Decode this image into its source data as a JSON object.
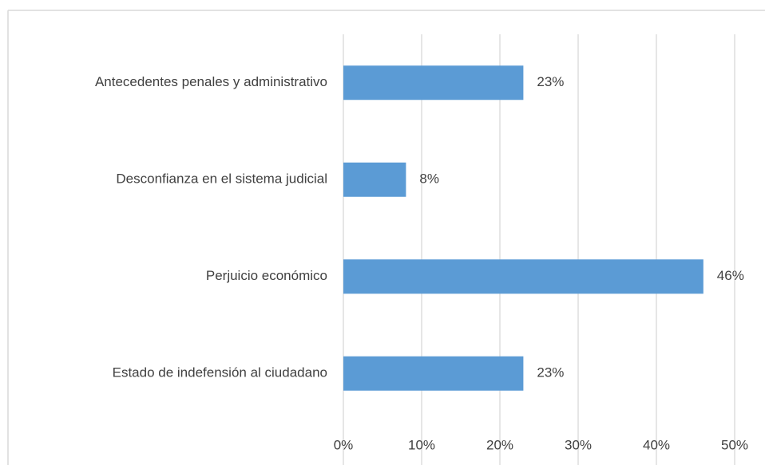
{
  "chart_data": {
    "type": "bar",
    "orientation": "horizontal",
    "categories": [
      "Antecedentes penales y administrativo",
      "Desconfianza en el sistema judicial",
      "Perjuicio económico",
      "Estado de indefensión al ciudadano"
    ],
    "values": [
      23,
      8,
      46,
      23
    ],
    "value_labels": [
      "23%",
      "8%",
      "46%",
      "23%"
    ],
    "color": "#5b9bd5",
    "xlim": [
      0,
      50
    ],
    "xticks": [
      {
        "value": 0,
        "label": "0%"
      },
      {
        "value": 10,
        "label": "10%"
      },
      {
        "value": 20,
        "label": "20%"
      },
      {
        "value": 30,
        "label": "30%"
      },
      {
        "value": 40,
        "label": "40%"
      },
      {
        "value": 50,
        "label": "50%"
      }
    ],
    "grid": true
  }
}
